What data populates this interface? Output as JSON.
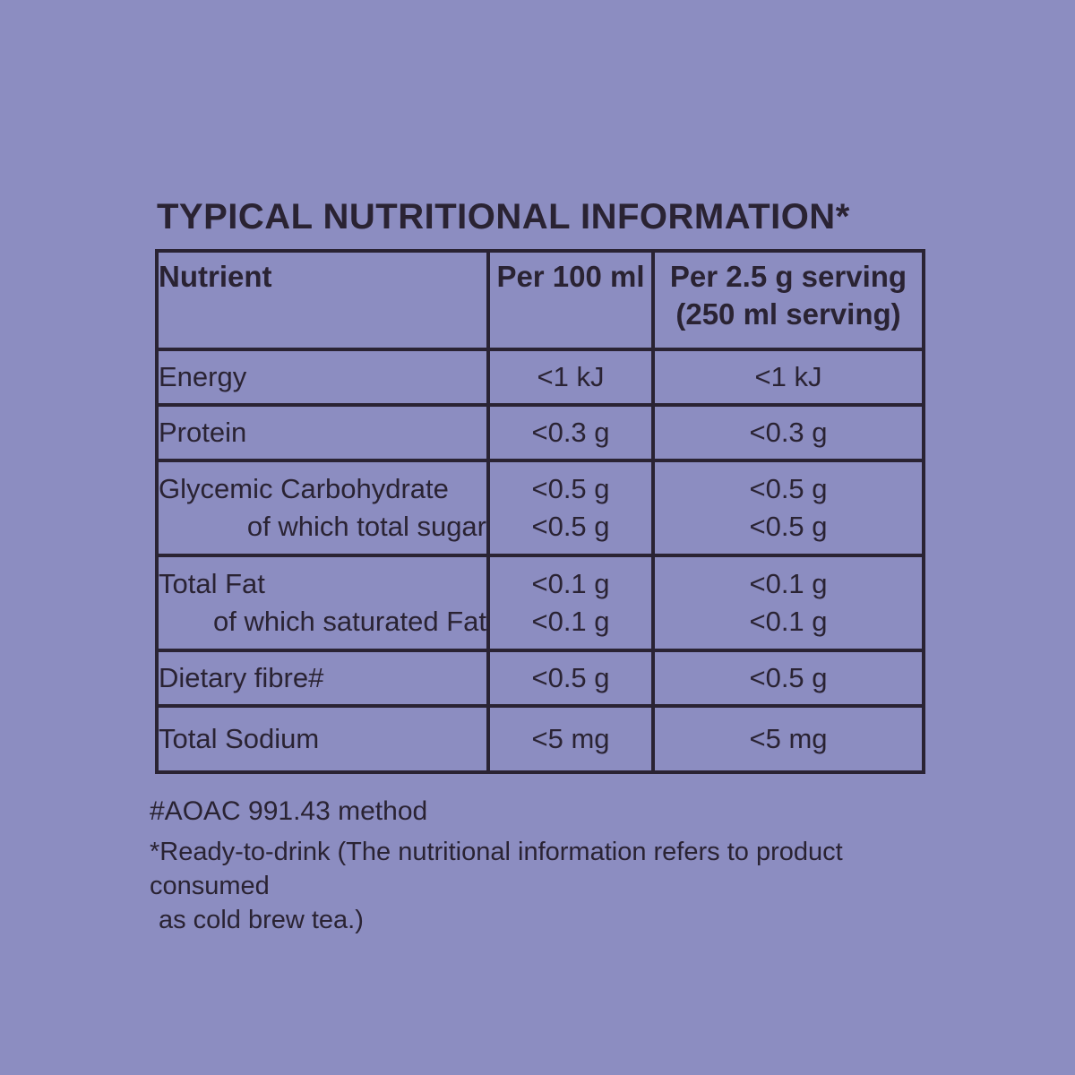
{
  "colors": {
    "background": "#8C8DC1",
    "ink": "#2A2333"
  },
  "title": "TYPICAL NUTRITIONAL INFORMATION*",
  "table": {
    "headers": [
      [
        "Nutrient"
      ],
      [
        "Per 100 ml"
      ],
      [
        "Per 2.5 g serving",
        "(250 ml serving)"
      ]
    ],
    "rows": [
      {
        "nutrient": [
          "Energy"
        ],
        "per_100ml": [
          "<1 kJ"
        ],
        "per_serving": [
          "<1 kJ"
        ]
      },
      {
        "nutrient": [
          "Protein"
        ],
        "per_100ml": [
          "<0.3 g"
        ],
        "per_serving": [
          "<0.3 g"
        ]
      },
      {
        "nutrient": [
          "Glycemic Carbohydrate",
          "of which total sugar"
        ],
        "per_100ml": [
          "<0.5 g",
          "<0.5 g"
        ],
        "per_serving": [
          "<0.5 g",
          "<0.5 g"
        ]
      },
      {
        "nutrient": [
          "Total Fat",
          "of which saturated Fat"
        ],
        "per_100ml": [
          "<0.1 g",
          "<0.1 g"
        ],
        "per_serving": [
          "<0.1 g",
          "<0.1 g"
        ]
      },
      {
        "nutrient": [
          "Dietary fibre#"
        ],
        "per_100ml": [
          "<0.5 g"
        ],
        "per_serving": [
          "<0.5 g"
        ]
      },
      {
        "nutrient": [
          "Total Sodium"
        ],
        "per_100ml": [
          "<5 mg"
        ],
        "per_serving": [
          "<5 mg"
        ]
      }
    ]
  },
  "footnotes": {
    "method": "#AOAC 991.43 method",
    "ready_to_drink_line1": "*Ready-to-drink (The nutritional information refers to product consumed",
    "ready_to_drink_line2": "as cold brew tea.)"
  }
}
